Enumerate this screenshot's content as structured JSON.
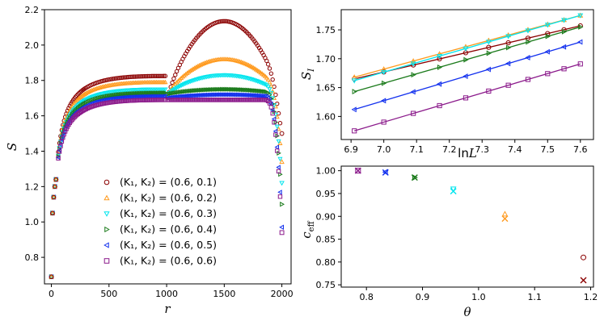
{
  "chart_data": [
    {
      "type": "scatter",
      "title": "",
      "xlabel": "r",
      "ylabel": "S",
      "xlim": [
        -60,
        2080
      ],
      "ylim": [
        0.65,
        2.2
      ],
      "xticks": [
        "0",
        "500",
        "1000",
        "1500",
        "2000"
      ],
      "xtick_values": [
        0,
        500,
        1000,
        1500,
        2000
      ],
      "yticks": [
        "0.8",
        "1.0",
        "1.2",
        "1.4",
        "1.6",
        "1.8",
        "2.0",
        "2.2"
      ],
      "ytick_values": [
        0.8,
        1.0,
        1.2,
        1.4,
        1.6,
        1.8,
        2.0,
        2.2
      ],
      "legend_location": "lower-center",
      "series": [
        {
          "name": "(K1, K2) = (0.6, 0.1)",
          "label": "(K₁, K₂) = (0.6, 0.1)",
          "color": "#8b0000",
          "marker": "circle",
          "left_peak": 1.825,
          "right_peak": 2.135,
          "right_start": 1.66,
          "end_value": 1.5
        },
        {
          "name": "(K1, K2) = (0.6, 0.2)",
          "label": "(K₁, K₂) = (0.6, 0.2)",
          "color": "#ff9a1e",
          "marker": "triangle-up",
          "left_peak": 1.79,
          "right_peak": 1.92,
          "right_start": 1.7,
          "end_value": 1.34
        },
        {
          "name": "(K1, K2) = (0.6, 0.3)",
          "label": "(K₁, K₂) = (0.6, 0.3)",
          "color": "#00e5ee",
          "marker": "triangle-down",
          "left_peak": 1.75,
          "right_peak": 1.83,
          "right_start": 1.71,
          "end_value": 1.22
        },
        {
          "name": "(K1, K2) = (0.6, 0.4)",
          "label": "(K₁, K₂) = (0.6, 0.4)",
          "color": "#1a7a1a",
          "marker": "triangle-right",
          "left_peak": 1.73,
          "right_peak": 1.75,
          "right_start": 1.72,
          "end_value": 1.1
        },
        {
          "name": "(K1, K2) = (0.6, 0.5)",
          "label": "(K₁, K₂) = (0.6, 0.5)",
          "color": "#1230ee",
          "marker": "triangle-left",
          "left_peak": 1.71,
          "right_peak": 1.72,
          "right_start": 1.7,
          "end_value": 0.97
        },
        {
          "name": "(K1, K2) = (0.6, 0.6)",
          "label": "(K₁, K₂) = (0.6, 0.6)",
          "color": "#8b1a8b",
          "marker": "square",
          "left_peak": 1.69,
          "right_peak": 1.69,
          "right_start": 1.69,
          "end_value": 0.94
        }
      ],
      "shared_start": [
        [
          0,
          0.69
        ],
        [
          10,
          1.05
        ],
        [
          20,
          1.14
        ],
        [
          30,
          1.2
        ],
        [
          40,
          1.24
        ]
      ]
    },
    {
      "type": "line",
      "title": "",
      "xlabel": "lnL",
      "ylabel": "S_I",
      "xlim": [
        6.87,
        7.64
      ],
      "ylim": [
        1.56,
        1.785
      ],
      "xticks": [
        "6.9",
        "7.0",
        "7.1",
        "7.2",
        "7.3",
        "7.4",
        "7.5",
        "7.6"
      ],
      "xtick_values": [
        6.9,
        7.0,
        7.1,
        7.2,
        7.3,
        7.4,
        7.5,
        7.6
      ],
      "yticks": [
        "1.60",
        "1.65",
        "1.70",
        "1.75"
      ],
      "ytick_values": [
        1.6,
        1.65,
        1.7,
        1.75
      ],
      "x": [
        6.91,
        7.0,
        7.09,
        7.17,
        7.25,
        7.32,
        7.38,
        7.44,
        7.5,
        7.55,
        7.6
      ],
      "series": [
        {
          "name": "K2=0.1",
          "color": "#8b0000",
          "marker": "circle",
          "line": [
            1.665,
            1.757
          ]
        },
        {
          "name": "K2=0.2",
          "color": "#ff9a1e",
          "marker": "triangle-up",
          "line": [
            1.668,
            1.775
          ]
        },
        {
          "name": "K2=0.3",
          "color": "#00e5ee",
          "marker": "triangle-down",
          "line": [
            1.662,
            1.775
          ]
        },
        {
          "name": "K2=0.4",
          "color": "#1a7a1a",
          "marker": "triangle-right",
          "line": [
            1.643,
            1.755
          ]
        },
        {
          "name": "K2=0.5",
          "color": "#1230ee",
          "marker": "triangle-left",
          "line": [
            1.612,
            1.729
          ]
        },
        {
          "name": "K2=0.6",
          "color": "#8b1a8b",
          "marker": "square",
          "line": [
            1.575,
            1.691
          ]
        }
      ]
    },
    {
      "type": "scatter",
      "title": "",
      "xlabel": "θ",
      "ylabel": "c_eff",
      "xlim": [
        0.755,
        1.205
      ],
      "ylim": [
        0.745,
        1.01
      ],
      "xticks": [
        "0.8",
        "0.9",
        "1.0",
        "1.1",
        "1.2"
      ],
      "xtick_values": [
        0.8,
        0.9,
        1.0,
        1.1,
        1.2
      ],
      "yticks": [
        "0.75",
        "0.80",
        "0.85",
        "0.90",
        "0.95",
        "1.00"
      ],
      "ytick_values": [
        0.75,
        0.8,
        0.85,
        0.9,
        0.95,
        1.0
      ],
      "series": [
        {
          "name": "K2=0.1",
          "color": "#8b0000",
          "marker": "circle",
          "x": 1.187,
          "y": 0.81,
          "cross_y": 0.76
        },
        {
          "name": "K2=0.2",
          "color": "#ff9a1e",
          "marker": "triangle-up",
          "x": 1.047,
          "y": 0.905,
          "cross_y": 0.895
        },
        {
          "name": "K2=0.3",
          "color": "#00e5ee",
          "marker": "triangle-down",
          "x": 0.955,
          "y": 0.96,
          "cross_y": 0.955
        },
        {
          "name": "K2=0.4",
          "color": "#1a7a1a",
          "marker": "triangle-right",
          "x": 0.886,
          "y": 0.985,
          "cross_y": 0.985
        },
        {
          "name": "K2=0.5",
          "color": "#1230ee",
          "marker": "triangle-left",
          "x": 0.834,
          "y": 0.997,
          "cross_y": 0.996
        },
        {
          "name": "K2=0.6",
          "color": "#8b1a8b",
          "marker": "square",
          "x": 0.785,
          "y": 1.0,
          "cross_y": 1.0
        }
      ]
    }
  ]
}
